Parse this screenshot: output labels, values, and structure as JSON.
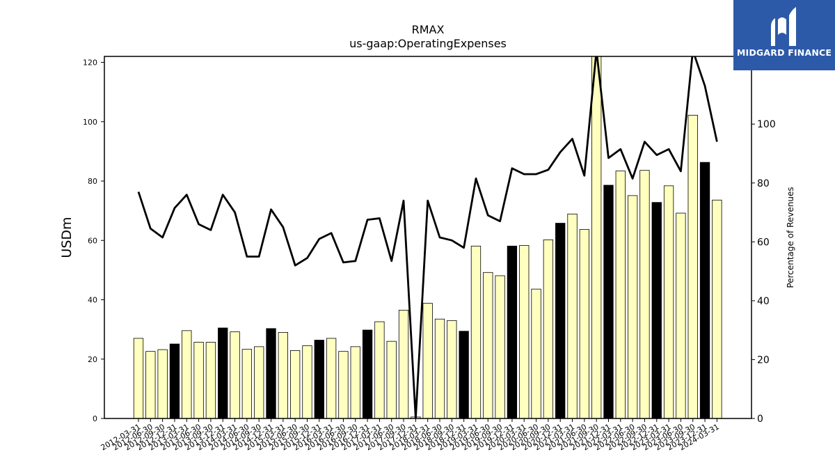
{
  "brand": {
    "name": "MIDGARD FINANCE",
    "icon": "midgard-logo-icon",
    "color": "#2d5aa8"
  },
  "chart_data": {
    "type": "bar",
    "title": "RMAX",
    "subtitle": "us-gaap:OperatingExpenses",
    "ylabel": "USDm",
    "y2label": "Percentage of Revenues",
    "ylim": [
      0,
      122
    ],
    "y2lim": [
      0,
      123
    ],
    "yticks": [
      0,
      20,
      40,
      60,
      80,
      100,
      120
    ],
    "y2ticks": [
      0,
      20,
      40,
      60,
      80,
      100
    ],
    "bar_color": "#ffffc0",
    "highlight_color": "#000000",
    "line_color": "#000000",
    "categories": [
      "2012-03-31",
      "2012-06-30",
      "2012-09-30",
      "2012-12-31",
      "2013-03-31",
      "2013-06-30",
      "2013-09-30",
      "2013-12-31",
      "2014-03-31",
      "2014-06-30",
      "2014-09-30",
      "2014-12-31",
      "2015-03-31",
      "2015-06-30",
      "2015-09-30",
      "2015-12-31",
      "2016-03-31",
      "2016-06-30",
      "2016-09-30",
      "2016-12-31",
      "2017-03-31",
      "2017-06-30",
      "2017-09-30",
      "2017-12-31",
      "2018-03-31",
      "2018-06-30",
      "2018-09-30",
      "2018-12-31",
      "2019-03-31",
      "2019-06-30",
      "2019-09-30",
      "2019-12-31",
      "2020-03-31",
      "2020-06-30",
      "2020-09-30",
      "2020-12-31",
      "2021-03-31",
      "2021-06-30",
      "2021-09-30",
      "2021-12-31",
      "2022-03-31",
      "2022-06-30",
      "2022-09-30",
      "2022-12-31",
      "2023-03-31",
      "2023-06-30",
      "2023-09-30",
      "2023-12-31",
      "2024-03-31"
    ],
    "series": [
      {
        "type": "bar",
        "values": [
          27.0,
          22.6,
          23.2,
          25.1,
          29.6,
          25.7,
          25.7,
          30.5,
          29.2,
          23.3,
          24.2,
          30.3,
          29.0,
          22.9,
          24.5,
          26.4,
          27.0,
          22.6,
          24.2,
          29.8,
          32.6,
          26.0,
          36.5,
          0.5,
          38.8,
          33.5,
          33.0,
          29.4,
          58.1,
          49.2,
          48.1,
          58.1,
          58.3,
          43.6,
          60.2,
          65.8,
          68.9,
          63.7,
          125.0,
          78.6,
          83.4,
          75.1,
          83.6,
          72.8,
          78.4,
          69.2,
          102.2,
          86.3,
          73.6
        ],
        "highlight": [
          false,
          false,
          false,
          true,
          false,
          false,
          false,
          true,
          false,
          false,
          false,
          true,
          false,
          false,
          false,
          true,
          false,
          false,
          false,
          true,
          false,
          false,
          false,
          false,
          false,
          false,
          false,
          true,
          false,
          false,
          false,
          true,
          false,
          false,
          false,
          true,
          false,
          false,
          false,
          true,
          false,
          false,
          false,
          true,
          false,
          false,
          false,
          true,
          false
        ]
      },
      {
        "type": "line",
        "axis": "right",
        "values": [
          77.0,
          64.5,
          61.5,
          71.5,
          76.0,
          66.0,
          64.0,
          76.0,
          70.0,
          55.0,
          55.0,
          71.0,
          65.0,
          52.0,
          54.5,
          61.0,
          63.0,
          53.0,
          53.5,
          67.5,
          68.0,
          53.5,
          74.0,
          0.0,
          74.0,
          61.5,
          60.5,
          58.0,
          81.5,
          69.0,
          67.0,
          85.0,
          83.0,
          83.0,
          84.5,
          90.5,
          95.0,
          82.5,
          125.0,
          88.5,
          91.5,
          81.5,
          94.0,
          89.5,
          91.5,
          84.0,
          125.0,
          113.0,
          94.0
        ]
      }
    ]
  }
}
